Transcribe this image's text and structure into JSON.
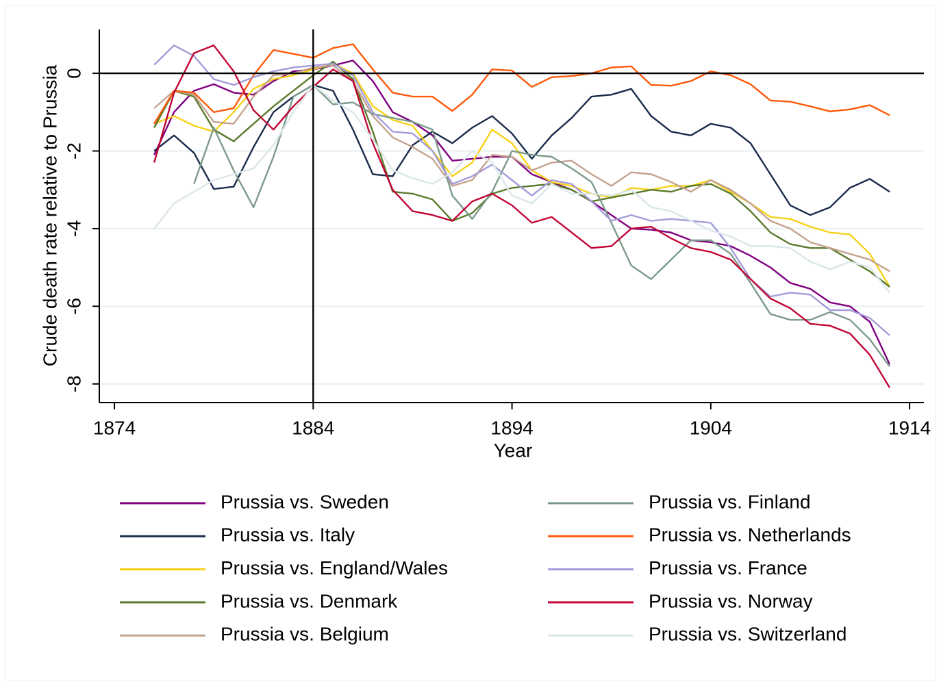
{
  "chart_data": {
    "type": "line",
    "x_label": "Year",
    "y_label": "Crude death rate relative to Prussia",
    "x": [
      1876,
      1877,
      1878,
      1879,
      1880,
      1881,
      1882,
      1883,
      1884,
      1885,
      1886,
      1887,
      1888,
      1889,
      1890,
      1891,
      1892,
      1893,
      1894,
      1895,
      1896,
      1897,
      1898,
      1899,
      1900,
      1901,
      1902,
      1903,
      1904,
      1905,
      1906,
      1907,
      1908,
      1909,
      1910,
      1911,
      1912,
      1913
    ],
    "xlim": [
      1873.24,
      1914.72
    ],
    "ylim": [
      -8.48,
      1.13
    ],
    "xticks": [
      1874,
      1884,
      1894,
      1904,
      1914
    ],
    "yticks": [
      -8,
      -6,
      -4,
      -2,
      0
    ],
    "grid": true,
    "reference_lines": {
      "x": 1884,
      "y": 0
    },
    "series": [
      {
        "name": "Prussia vs. Sweden",
        "color": "#800080",
        "values": [
          -2.1,
          -1.0,
          -0.45,
          -0.28,
          -0.5,
          -0.55,
          -0.2,
          0.05,
          0.1,
          0.2,
          0.33,
          -0.2,
          -1.0,
          -1.25,
          -1.6,
          -2.25,
          -2.2,
          -2.15,
          -2.15,
          -2.6,
          -2.8,
          -3.0,
          -3.3,
          -3.65,
          -4.0,
          -4.03,
          -4.1,
          -4.3,
          -4.35,
          -4.45,
          -4.7,
          -5.0,
          -5.4,
          -5.55,
          -5.9,
          -6.0,
          -6.4,
          -7.5
        ]
      },
      {
        "name": "Prussia vs. Italy",
        "color": "#1a2b4c",
        "values": [
          -2.0,
          -1.6,
          -2.05,
          -2.98,
          -2.92,
          -1.9,
          -1.0,
          -0.6,
          -0.3,
          -0.45,
          -1.45,
          -2.6,
          -2.65,
          -1.85,
          -1.5,
          -1.8,
          -1.4,
          -1.1,
          -1.55,
          -2.2,
          -1.6,
          -1.15,
          -0.6,
          -0.55,
          -0.4,
          -1.1,
          -1.5,
          -1.6,
          -1.3,
          -1.4,
          -1.8,
          -2.6,
          -3.4,
          -3.65,
          -3.45,
          -2.95,
          -2.72,
          -3.05
        ]
      },
      {
        "name": "Prussia vs. England/Wales",
        "color": "#f7d117",
        "values": [
          -1.3,
          -1.1,
          -1.35,
          -1.5,
          -1.0,
          -0.4,
          -0.15,
          -0.05,
          0.1,
          0.25,
          0.0,
          -0.85,
          -1.2,
          -1.35,
          -2.0,
          -2.65,
          -2.3,
          -1.45,
          -1.8,
          -2.5,
          -2.8,
          -2.9,
          -3.1,
          -3.2,
          -2.95,
          -3.0,
          -2.9,
          -2.9,
          -2.75,
          -3.05,
          -3.35,
          -3.7,
          -3.75,
          -3.95,
          -4.1,
          -4.15,
          -4.65,
          -5.5
        ]
      },
      {
        "name": "Prussia vs. Denmark",
        "color": "#5a7a2b",
        "values": [
          -1.4,
          -0.45,
          -0.6,
          -1.45,
          -1.75,
          -1.3,
          -0.85,
          -0.45,
          -0.05,
          0.3,
          -0.15,
          -1.5,
          -3.05,
          -3.1,
          -3.25,
          -3.8,
          -3.6,
          -3.1,
          -2.95,
          -2.9,
          -2.85,
          -3.0,
          -3.3,
          -3.2,
          -3.1,
          -3.0,
          -3.05,
          -2.9,
          -2.85,
          -3.1,
          -3.55,
          -4.1,
          -4.4,
          -4.5,
          -4.5,
          -4.8,
          -5.1,
          -5.5
        ]
      },
      {
        "name": "Prussia vs. Belgium",
        "color": "#c4a38f",
        "values": [
          -0.9,
          -0.45,
          -0.55,
          -1.25,
          -1.3,
          -0.6,
          -0.05,
          0.0,
          0.15,
          0.2,
          -0.2,
          -1.1,
          -1.65,
          -1.9,
          -2.2,
          -2.9,
          -2.75,
          -2.1,
          -2.15,
          -2.5,
          -2.3,
          -2.25,
          -2.6,
          -2.9,
          -2.55,
          -2.6,
          -2.8,
          -3.05,
          -2.75,
          -3.0,
          -3.35,
          -3.8,
          -4.0,
          -4.35,
          -4.5,
          -4.65,
          -4.8,
          -5.1
        ]
      },
      {
        "name": "Prussia vs. Finland",
        "color": "#7c9a8a",
        "values": [
          null,
          null,
          -2.85,
          -1.4,
          -2.5,
          -3.45,
          -2.15,
          -0.6,
          -0.3,
          -0.8,
          -0.75,
          -1.05,
          -1.15,
          -1.25,
          -1.45,
          -3.15,
          -3.75,
          -3.05,
          -2.0,
          -2.1,
          -2.15,
          -2.45,
          -2.8,
          -3.85,
          -4.95,
          -5.3,
          -4.8,
          -4.3,
          -4.3,
          -4.65,
          -5.4,
          -6.2,
          -6.35,
          -6.35,
          -6.15,
          -6.35,
          -6.85,
          -7.55
        ]
      },
      {
        "name": "Prussia vs. Netherlands",
        "color": "#ff5a0a",
        "values": [
          -1.3,
          -0.45,
          -0.5,
          -1.0,
          -0.9,
          -0.05,
          0.6,
          0.5,
          0.4,
          0.65,
          0.75,
          0.1,
          -0.5,
          -0.6,
          -0.6,
          -0.97,
          -0.55,
          0.1,
          0.07,
          -0.35,
          -0.1,
          -0.07,
          0.0,
          0.15,
          0.18,
          -0.3,
          -0.32,
          -0.2,
          0.05,
          -0.05,
          -0.28,
          -0.7,
          -0.73,
          -0.85,
          -0.98,
          -0.93,
          -0.82,
          -1.08
        ]
      },
      {
        "name": "Prussia vs. France",
        "color": "#a49bd9",
        "values": [
          0.22,
          0.72,
          0.45,
          -0.15,
          -0.3,
          -0.1,
          0.05,
          0.15,
          0.2,
          0.25,
          -0.05,
          -1.0,
          -1.5,
          -1.55,
          -2.0,
          -2.85,
          -2.65,
          -2.35,
          -2.75,
          -3.15,
          -2.75,
          -2.85,
          -3.3,
          -3.8,
          -3.65,
          -3.8,
          -3.75,
          -3.8,
          -3.85,
          -4.5,
          -5.3,
          -5.75,
          -5.65,
          -5.7,
          -6.1,
          -6.1,
          -6.3,
          -6.75
        ]
      },
      {
        "name": "Prussia vs. Norway",
        "color": "#c10534",
        "values": [
          -2.3,
          -0.5,
          0.52,
          0.72,
          0.05,
          -0.95,
          -1.45,
          -0.85,
          -0.35,
          0.1,
          -0.2,
          -1.8,
          -3.0,
          -3.55,
          -3.65,
          -3.8,
          -3.3,
          -3.1,
          -3.4,
          -3.85,
          -3.7,
          -4.1,
          -4.5,
          -4.45,
          -4.0,
          -3.95,
          -4.25,
          -4.5,
          -4.6,
          -4.8,
          -5.3,
          -5.8,
          -6.05,
          -6.45,
          -6.5,
          -6.7,
          -7.25,
          -8.1
        ]
      },
      {
        "name": "Prussia vs. Switzerland",
        "color": "#dbe6ea",
        "values": [
          -4.0,
          -3.35,
          -3.05,
          -2.75,
          -2.6,
          -2.45,
          -1.85,
          -1.0,
          -0.3,
          -0.7,
          -1.0,
          -1.7,
          -2.5,
          -2.7,
          -2.85,
          -2.55,
          -2.0,
          -2.3,
          -3.15,
          -3.35,
          -2.85,
          -3.1,
          -3.1,
          -3.15,
          -3.0,
          -3.45,
          -3.55,
          -3.8,
          -4.05,
          -4.2,
          -4.45,
          -4.45,
          -4.5,
          -4.85,
          -5.05,
          -4.85,
          -5.0,
          -5.65
        ]
      }
    ]
  }
}
